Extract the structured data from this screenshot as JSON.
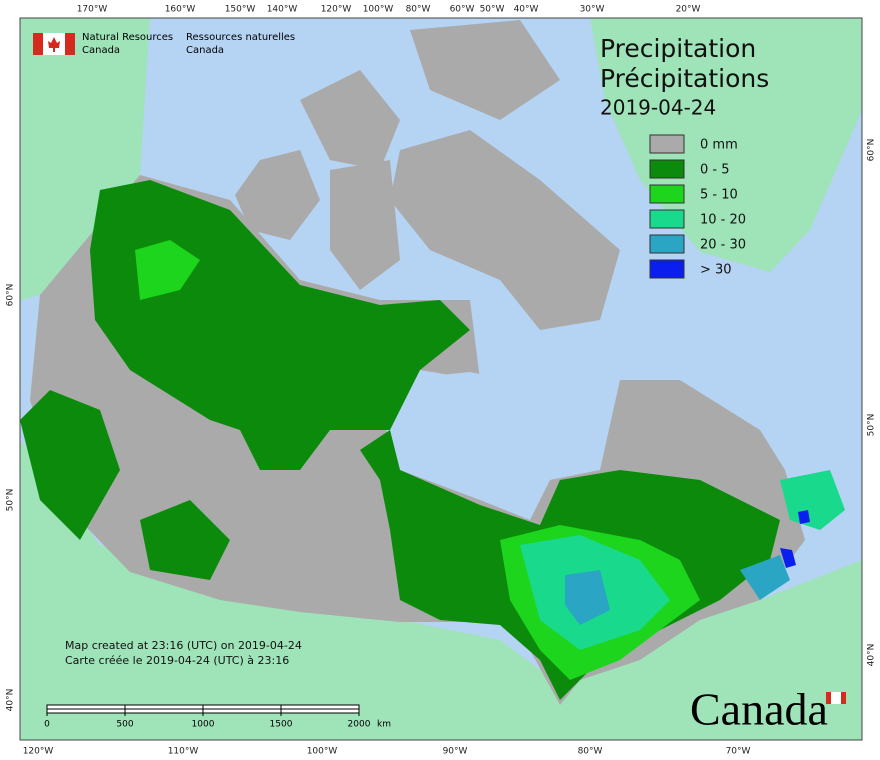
{
  "header": {
    "agency_en_line1": "Natural Resources",
    "agency_en_line2": "Canada",
    "agency_fr_line1": "Ressources naturelles",
    "agency_fr_line2": "Canada"
  },
  "title": {
    "line1": "Precipitation",
    "line2": "Précipitations",
    "date": "2019-04-24"
  },
  "legend": [
    {
      "label": "0 mm",
      "color": "#aaaaaa"
    },
    {
      "label": "0 - 5",
      "color": "#0b8a0b"
    },
    {
      "label": "5 - 10",
      "color": "#1ed51e"
    },
    {
      "label": "10 - 20",
      "color": "#19d98c"
    },
    {
      "label": "20 - 30",
      "color": "#2aa6c4"
    },
    {
      "label": "> 30",
      "color": "#0a1ef0"
    }
  ],
  "graticule": {
    "top": [
      "170°W",
      "160°W",
      "150°W",
      "140°W",
      "120°W",
      "100°W",
      "80°W",
      "60°W",
      "50°W",
      "40°W",
      "30°W",
      "20°W"
    ],
    "bottom": [
      "120°W",
      "110°W",
      "100°W",
      "90°W",
      "80°W",
      "70°W"
    ],
    "left": [
      "60°N",
      "50°N",
      "40°N"
    ],
    "right": [
      "60°N",
      "50°N",
      "40°N"
    ]
  },
  "footer": {
    "line1": "Map created at 23:16 (UTC) on 2019-04-24",
    "line2": "Carte créée le 2019-04-24 (UTC) à 23:16"
  },
  "scale_bar": {
    "ticks": [
      0,
      500,
      1000,
      1500,
      2000
    ],
    "unit": "km"
  },
  "wordmark": "Canada"
}
